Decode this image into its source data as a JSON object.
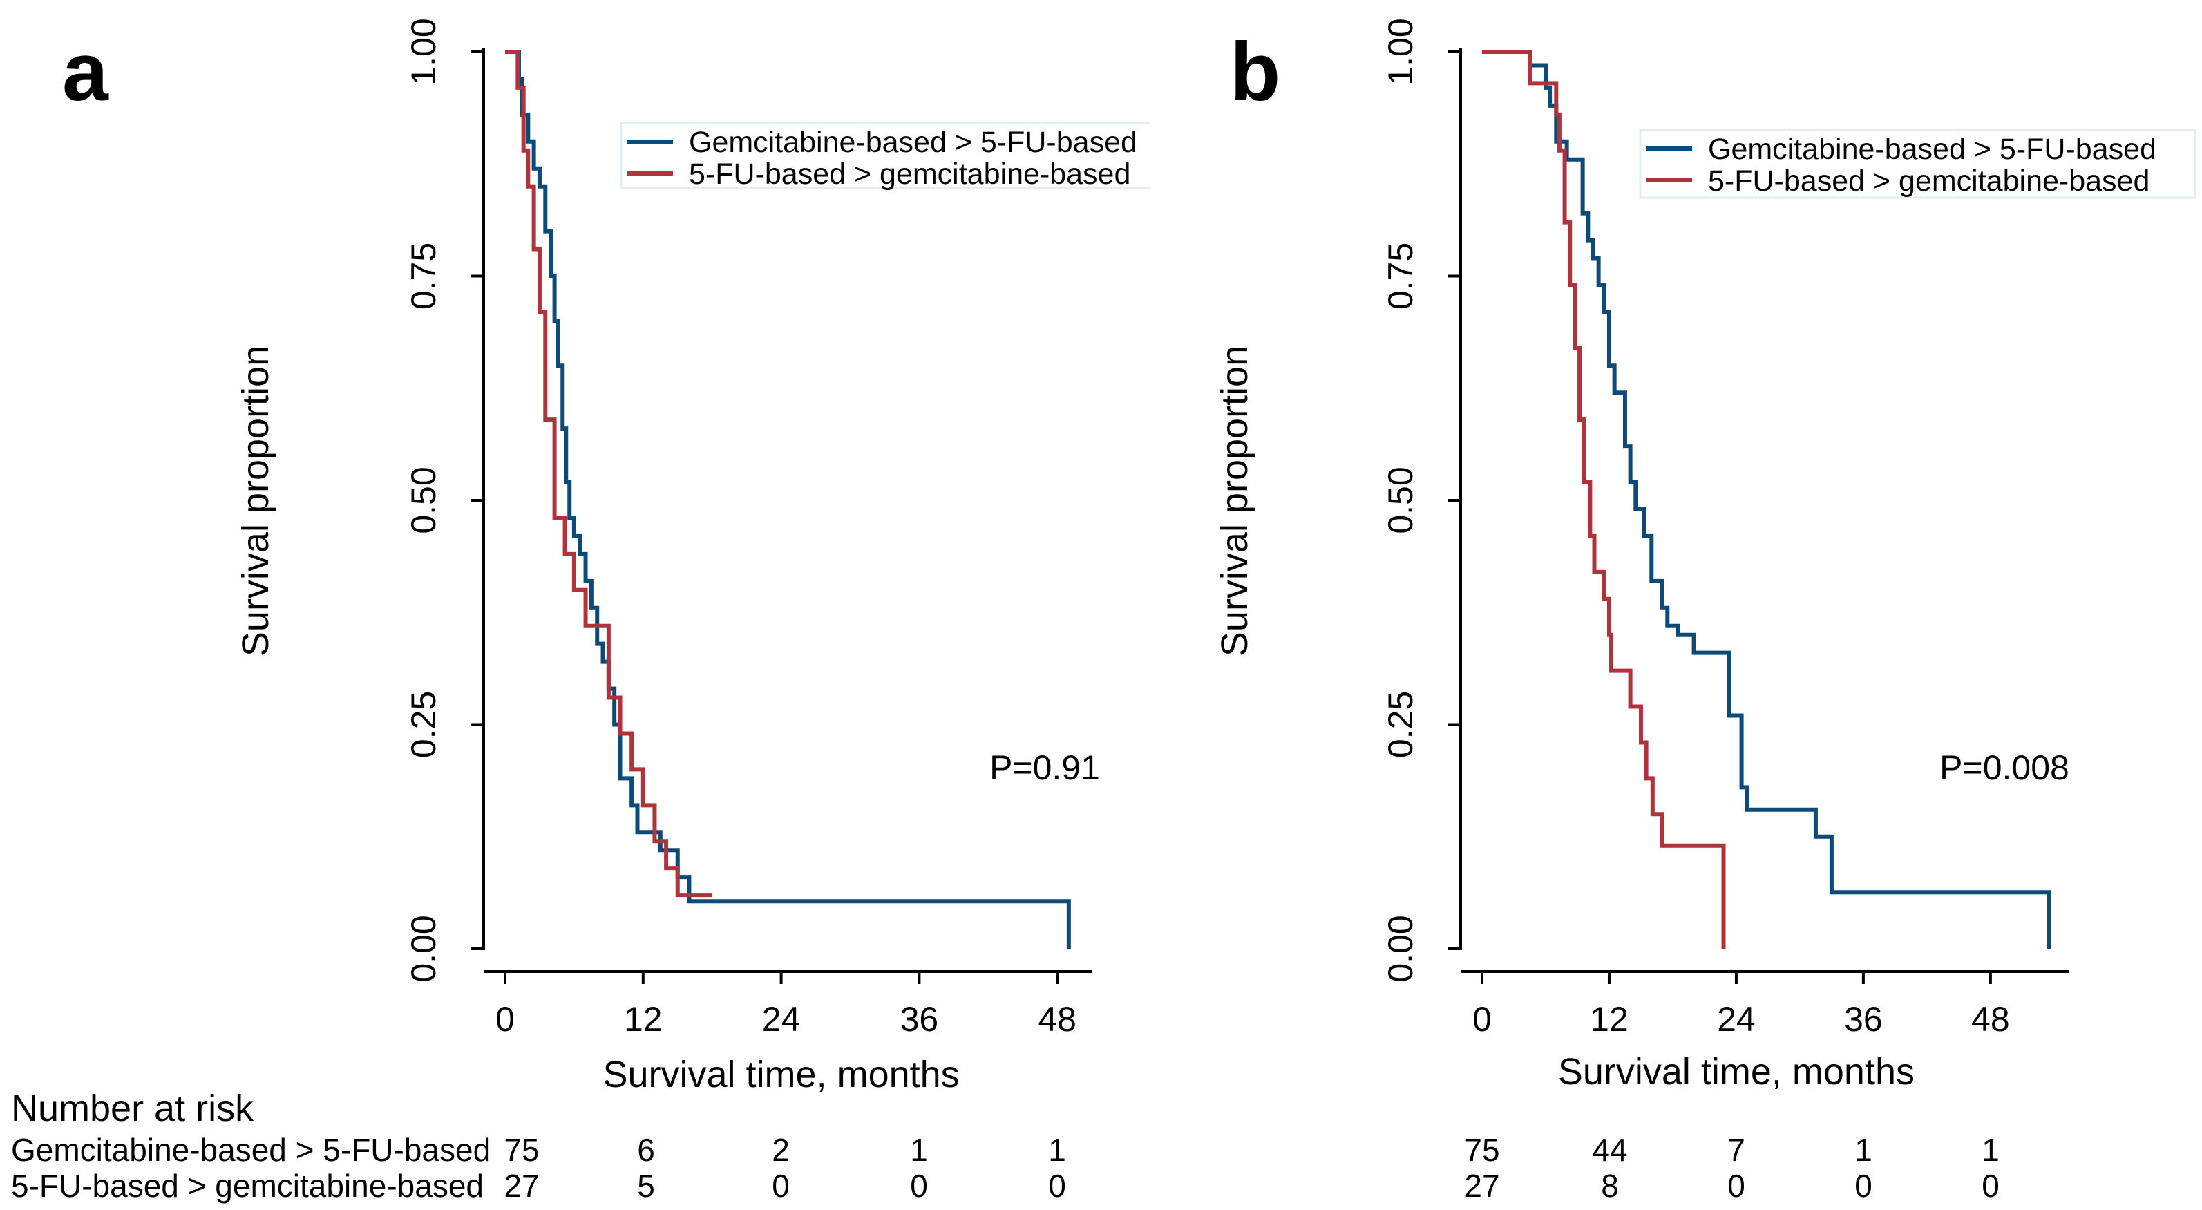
{
  "chart_data": [
    {
      "type": "line",
      "panel_label": "a",
      "xlabel": "Survival time, months",
      "ylabel": "Survival proportion",
      "xlim": [
        0,
        50
      ],
      "ylim": [
        0,
        1
      ],
      "xticks": [
        "0",
        "12",
        "24",
        "36",
        "48"
      ],
      "xtick_values": [
        0,
        12,
        24,
        36,
        48
      ],
      "yticks": [
        "0.00",
        "0.25",
        "0.50",
        "0.75",
        "1.00"
      ],
      "ytick_values": [
        0,
        0.25,
        0.5,
        0.75,
        1
      ],
      "annotation": "P=0.91",
      "legend_placement": "top-right",
      "series": [
        {
          "name": "Gemcitabine-based > 5-FU-based",
          "color": "#0e4a78",
          "steps": [
            [
              0.9,
              1.0
            ],
            [
              1.2,
              0.97
            ],
            [
              1.5,
              0.93
            ],
            [
              2,
              0.9
            ],
            [
              2.5,
              0.87
            ],
            [
              3,
              0.85
            ],
            [
              3.5,
              0.8
            ],
            [
              4,
              0.75
            ],
            [
              4.3,
              0.7
            ],
            [
              4.6,
              0.65
            ],
            [
              5,
              0.58
            ],
            [
              5.3,
              0.52
            ],
            [
              5.6,
              0.48
            ],
            [
              6,
              0.46
            ],
            [
              6.5,
              0.44
            ],
            [
              7,
              0.41
            ],
            [
              7.5,
              0.38
            ],
            [
              8,
              0.34
            ],
            [
              8.5,
              0.32
            ],
            [
              9,
              0.29
            ],
            [
              9.5,
              0.25
            ],
            [
              10,
              0.19
            ],
            [
              11,
              0.16
            ],
            [
              11.5,
              0.13
            ],
            [
              13.5,
              0.11
            ],
            [
              15,
              0.08
            ],
            [
              16,
              0.053
            ],
            [
              49,
              0
            ]
          ]
        },
        {
          "name": "5-FU-based > gemcitabine-based",
          "color": "#b0323a",
          "steps": [
            [
              0,
              1.0
            ],
            [
              1.1,
              0.96
            ],
            [
              1.6,
              0.89
            ],
            [
              2,
              0.85
            ],
            [
              2.5,
              0.78
            ],
            [
              3,
              0.71
            ],
            [
              3.5,
              0.59
            ],
            [
              4.3,
              0.48
            ],
            [
              5.2,
              0.44
            ],
            [
              6,
              0.4
            ],
            [
              7,
              0.36
            ],
            [
              9,
              0.28
            ],
            [
              10,
              0.24
            ],
            [
              11,
              0.2
            ],
            [
              12,
              0.16
            ],
            [
              13,
              0.12
            ],
            [
              14,
              0.09
            ],
            [
              15,
              0.06
            ],
            [
              18,
              0.06
            ]
          ]
        }
      ],
      "number_at_risk": {
        "title": "Number at risk",
        "rows": [
          {
            "label": "Gemcitabine-based > 5-FU-based",
            "values": [
              "75",
              "6",
              "2",
              "1",
              "1"
            ]
          },
          {
            "label": "5-FU-based > gemcitabine-based",
            "values": [
              "27",
              "5",
              "0",
              "0",
              "0"
            ]
          }
        ]
      }
    },
    {
      "type": "line",
      "panel_label": "b",
      "xlabel": "Survival time, months",
      "ylabel": "Survival proportion",
      "xlim": [
        0,
        55
      ],
      "ylim": [
        0,
        1
      ],
      "xticks": [
        "0",
        "12",
        "24",
        "36",
        "48"
      ],
      "xtick_values": [
        0,
        12,
        24,
        36,
        48
      ],
      "yticks": [
        "0.00",
        "0.25",
        "0.50",
        "0.75",
        "1.00"
      ],
      "ytick_values": [
        0,
        0.25,
        0.5,
        0.75,
        1
      ],
      "annotation": "P=0.008",
      "legend_placement": "top-right",
      "series": [
        {
          "name": "Gemcitabine-based > 5-FU-based",
          "color": "#0e4a78",
          "steps": [
            [
              0,
              1.0
            ],
            [
              4.5,
              0.985
            ],
            [
              6,
              0.96
            ],
            [
              6.4,
              0.94
            ],
            [
              7,
              0.9
            ],
            [
              8,
              0.88
            ],
            [
              9.5,
              0.82
            ],
            [
              10,
              0.79
            ],
            [
              10.5,
              0.77
            ],
            [
              11,
              0.74
            ],
            [
              11.5,
              0.71
            ],
            [
              12,
              0.65
            ],
            [
              12.5,
              0.62
            ],
            [
              13.5,
              0.56
            ],
            [
              14,
              0.52
            ],
            [
              14.5,
              0.49
            ],
            [
              15.3,
              0.46
            ],
            [
              16,
              0.41
            ],
            [
              17,
              0.38
            ],
            [
              17.5,
              0.36
            ],
            [
              18.5,
              0.35
            ],
            [
              20,
              0.33
            ],
            [
              23.3,
              0.26
            ],
            [
              24.5,
              0.18
            ],
            [
              25,
              0.155
            ],
            [
              31.5,
              0.125
            ],
            [
              33,
              0.063
            ],
            [
              53.5,
              0
            ]
          ]
        },
        {
          "name": "5-FU-based > gemcitabine-based",
          "color": "#b0323a",
          "steps": [
            [
              0,
              1.0
            ],
            [
              4.5,
              0.965
            ],
            [
              7,
              0.93
            ],
            [
              7.3,
              0.89
            ],
            [
              7.8,
              0.81
            ],
            [
              8.3,
              0.74
            ],
            [
              8.8,
              0.67
            ],
            [
              9.2,
              0.59
            ],
            [
              9.6,
              0.52
            ],
            [
              10.2,
              0.46
            ],
            [
              10.6,
              0.42
            ],
            [
              11.5,
              0.39
            ],
            [
              12,
              0.35
            ],
            [
              12.2,
              0.31
            ],
            [
              14,
              0.27
            ],
            [
              15,
              0.23
            ],
            [
              15.5,
              0.19
            ],
            [
              16.1,
              0.15
            ],
            [
              17,
              0.115
            ],
            [
              22.8,
              0
            ]
          ]
        }
      ],
      "number_at_risk": {
        "rows": [
          {
            "values": [
              "75",
              "44",
              "7",
              "1",
              "1"
            ]
          },
          {
            "values": [
              "27",
              "8",
              "0",
              "0",
              "0"
            ]
          }
        ]
      }
    }
  ]
}
